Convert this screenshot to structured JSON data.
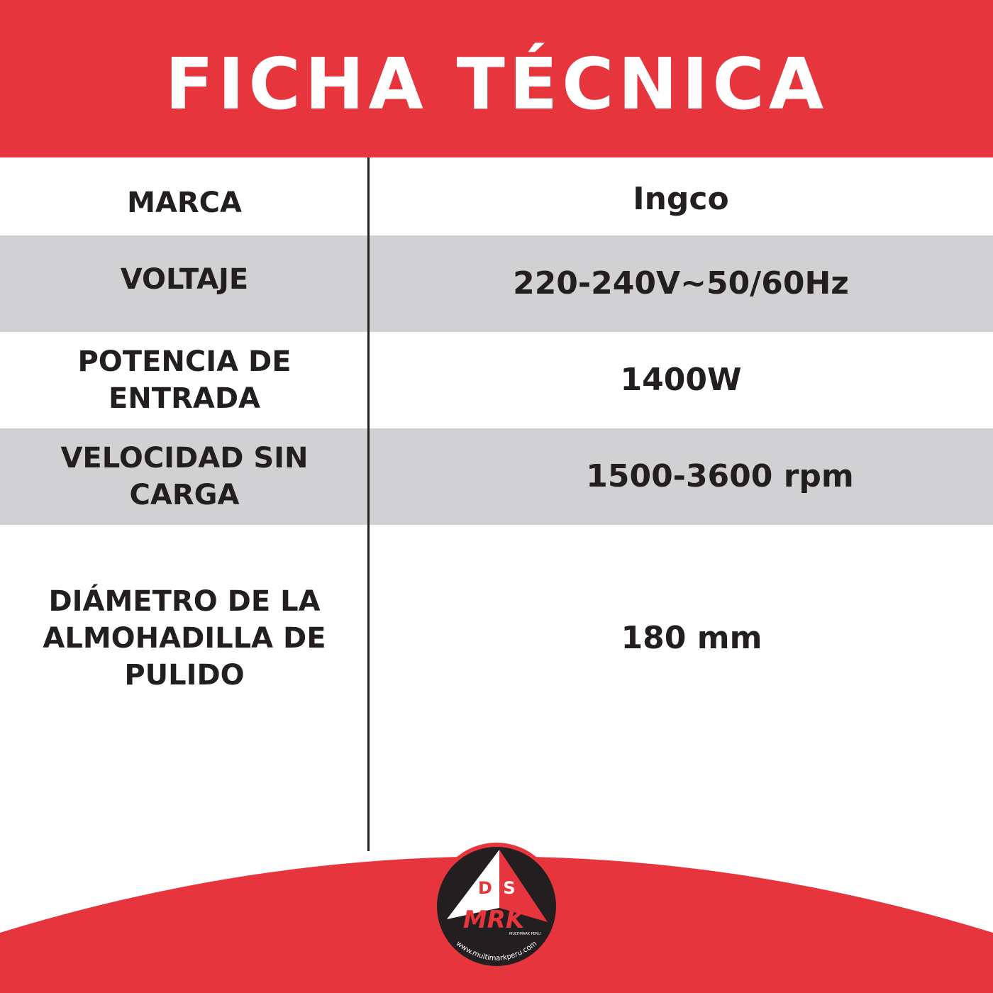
{
  "header": {
    "title": "FICHA TÉCNICA"
  },
  "rows": [
    {
      "label": "MARCA",
      "value": "Ingco"
    },
    {
      "label": "VOLTAJE",
      "value": "220-240V~50/60Hz"
    },
    {
      "label": "POTENCIA DE ENTRADA",
      "value": "1400W"
    },
    {
      "label": "VELOCIDAD SIN CARGA",
      "value": "1500-3600 rpm"
    },
    {
      "label": "DIÁMETRO DE LA ALMOHADILLA DE PULIDO",
      "value": "180 mm"
    }
  ],
  "logo": {
    "letters_left": "D",
    "letters_right": "S",
    "brand": "MRK",
    "tagline": "MULTIMARK PERU",
    "url": "www.multimarkperu.com"
  },
  "colors": {
    "accent": "#e6353c",
    "row_alt": "#d1d1d3",
    "text": "#231f20"
  }
}
